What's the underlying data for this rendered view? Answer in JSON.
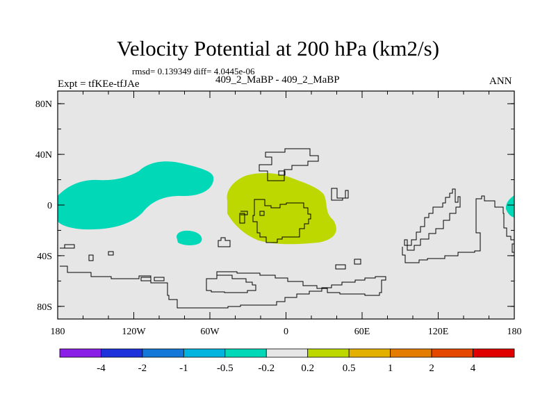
{
  "header": {
    "title": "Velocity Potential at 200 hPa (km2/s)",
    "stats": "rmsd= 0.139349 diff= 4.0445e-06",
    "expt": "Expt = tfKEe-tfJAe",
    "cases": "409_2_MaBP - 409_2_MaBP",
    "season": "ANN"
  },
  "chart_data": {
    "type": "heatmap",
    "title": "Velocity Potential at 200 hPa (km2/s)",
    "xlabel": "",
    "ylabel": "",
    "xlim": [
      -180,
      180
    ],
    "ylim": [
      -90,
      90
    ],
    "x_ticks": [
      {
        "value": -180,
        "label": "180"
      },
      {
        "value": -120,
        "label": "120W"
      },
      {
        "value": -60,
        "label": "60W"
      },
      {
        "value": 0,
        "label": "0"
      },
      {
        "value": 60,
        "label": "60E"
      },
      {
        "value": 120,
        "label": "120E"
      },
      {
        "value": 180,
        "label": "180"
      }
    ],
    "y_ticks": [
      {
        "value": 80,
        "label": "80N"
      },
      {
        "value": 40,
        "label": "40N"
      },
      {
        "value": 0,
        "label": "0"
      },
      {
        "value": -40,
        "label": "40S"
      },
      {
        "value": -80,
        "label": "80S"
      }
    ],
    "background_color": "#e6e6e6",
    "regions": [
      {
        "level": "-0.5 to -0.2",
        "color": "#00d8b8",
        "center": [
          -130,
          14
        ]
      },
      {
        "level": "-0.5 to -0.2",
        "color": "#00d8b8",
        "center": [
          -83,
          -26
        ]
      },
      {
        "level": "-0.5 to -0.2",
        "color": "#00d8b8",
        "center": [
          175,
          0
        ]
      },
      {
        "level": "0.2 to 0.5",
        "color": "#bcd800",
        "center": [
          10,
          6
        ]
      }
    ],
    "colorbar": {
      "colors": [
        "#8a1ee6",
        "#1e32dc",
        "#1478d8",
        "#00b4e0",
        "#00d8b8",
        "#e6e6e6",
        "#bcd800",
        "#e4b000",
        "#e47c00",
        "#e44800",
        "#e00000"
      ],
      "labels": [
        "-4",
        "-2",
        "-1",
        "-0.5",
        "-0.2",
        "0.2",
        "0.5",
        "1",
        "2",
        "4"
      ]
    }
  }
}
